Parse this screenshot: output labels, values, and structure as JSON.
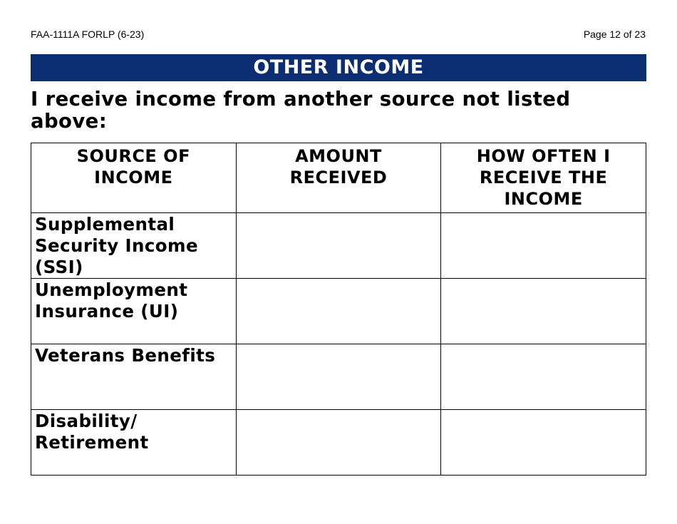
{
  "header": {
    "form_id": "FAA-1111A FORLP (6-23)",
    "page": "Page 12 of 23"
  },
  "section_title": "OTHER INCOME",
  "intro": "I receive income from another source not listed above:",
  "table": {
    "headers": [
      "SOURCE OF INCOME",
      "AMOUNT RECEIVED",
      "HOW OFTEN I RECEIVE THE INCOME"
    ],
    "rows": [
      {
        "source": "Supplemental Security Income (SSI)",
        "amount": "",
        "frequency": ""
      },
      {
        "source": "Unemployment Insurance (UI)",
        "amount": "",
        "frequency": ""
      },
      {
        "source": "Veterans Benefits",
        "amount": "",
        "frequency": ""
      },
      {
        "source": "Disability/ Retirement",
        "amount": "",
        "frequency": ""
      }
    ]
  },
  "colors": {
    "banner": "#0d2d72"
  }
}
